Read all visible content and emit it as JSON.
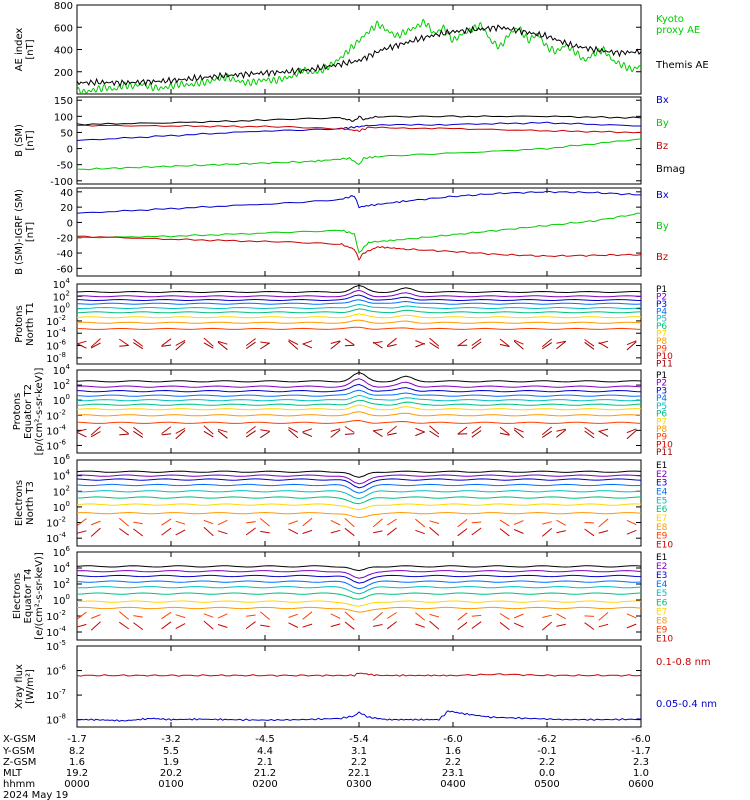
{
  "figure": {
    "date": "2024 May 19",
    "time_axis": {
      "start": "0000",
      "end": "0600",
      "rows": [
        {
          "label": "X-GSM",
          "values": [
            "-1.7",
            "-3.2",
            "-4.5",
            "-5.4",
            "-6.0",
            "-6.2",
            "-6.0"
          ]
        },
        {
          "label": "Y-GSM",
          "values": [
            "8.2",
            "5.5",
            "4.4",
            "3.1",
            "1.6",
            "-0.1",
            "-1.7"
          ]
        },
        {
          "label": "Z-GSM",
          "values": [
            "1.6",
            "1.9",
            "2.1",
            "2.2",
            "2.2",
            "2.2",
            "2.3"
          ]
        },
        {
          "label": "MLT",
          "values": [
            "19.2",
            "20.2",
            "21.2",
            "22.1",
            "23.1",
            "0.0",
            "1.0"
          ]
        },
        {
          "label": "hhmm",
          "values": [
            "0000",
            "0100",
            "0200",
            "0300",
            "0400",
            "0500",
            "0600"
          ]
        }
      ]
    }
  },
  "chart_data": [
    {
      "type": "line",
      "ylabel": "AE index\n[nT]",
      "ylim": [
        0,
        800
      ],
      "yticks": [
        "200",
        "400",
        "600",
        "800"
      ],
      "series": [
        {
          "name": "Kyoto\nproxy AE",
          "color": "#00cc00",
          "x": [
            0,
            0.1,
            0.2,
            0.3,
            0.4,
            0.5,
            0.6,
            0.7,
            0.8,
            0.9,
            1,
            1.1,
            1.2,
            1.3,
            1.4,
            1.5,
            1.6,
            1.7,
            1.8,
            1.9,
            2,
            2.1,
            2.2,
            2.3,
            2.4,
            2.5,
            2.6,
            2.7,
            2.8,
            2.9,
            3,
            3.1,
            3.2,
            3.3,
            3.4,
            3.5,
            3.6,
            3.7,
            3.8,
            3.9,
            4,
            4.1,
            4.2,
            4.3,
            4.4,
            4.5,
            4.6,
            4.7,
            4.8,
            4.9,
            5,
            5.1,
            5.2,
            5.3,
            5.4,
            5.5,
            5.6,
            5.7,
            5.8,
            5.9,
            6
          ],
          "y": [
            30,
            20,
            40,
            60,
            40,
            80,
            70,
            90,
            60,
            50,
            70,
            90,
            80,
            100,
            110,
            140,
            150,
            120,
            100,
            110,
            130,
            120,
            140,
            160,
            220,
            190,
            210,
            260,
            320,
            400,
            480,
            560,
            630,
            570,
            520,
            560,
            600,
            650,
            540,
            600,
            480,
            540,
            580,
            620,
            480,
            420,
            540,
            600,
            480,
            540,
            420,
            380,
            440,
            380,
            300,
            360,
            400,
            300,
            260,
            220,
            250
          ]
        },
        {
          "name": "Themis AE",
          "color": "#000000",
          "x": [
            0,
            0.25,
            0.5,
            0.75,
            1,
            1.25,
            1.5,
            1.75,
            2,
            2.25,
            2.5,
            2.75,
            3,
            3.25,
            3.5,
            3.75,
            4,
            4.25,
            4.5,
            4.75,
            5,
            5.25,
            5.5,
            5.75,
            6
          ],
          "y": [
            100,
            105,
            100,
            110,
            120,
            140,
            160,
            175,
            190,
            200,
            220,
            260,
            300,
            400,
            460,
            520,
            560,
            580,
            600,
            560,
            520,
            440,
            400,
            370,
            380
          ]
        }
      ]
    },
    {
      "type": "line",
      "ylabel": "B (SM)\n[nT]",
      "ylim": [
        -110,
        160
      ],
      "yticks": [
        "-100",
        "-50",
        "0",
        "50",
        "100",
        "150"
      ],
      "series": [
        {
          "name": "Bx",
          "color": "#0000cc",
          "x": [
            0,
            1,
            2,
            2.8,
            3,
            3.1,
            4,
            5,
            6
          ],
          "y": [
            25,
            40,
            55,
            62,
            68,
            72,
            75,
            80,
            70
          ]
        },
        {
          "name": "By",
          "color": "#00cc00",
          "x": [
            0,
            0.5,
            1,
            1.5,
            2,
            2.5,
            2.9,
            3,
            3.05,
            3.2,
            4,
            5,
            6
          ],
          "y": [
            -65,
            -60,
            -55,
            -50,
            -45,
            -40,
            -30,
            -50,
            -30,
            -25,
            -15,
            0,
            30
          ]
        },
        {
          "name": "Bz",
          "color": "#cc0000",
          "x": [
            0,
            1,
            2,
            2.8,
            3,
            3.1,
            4,
            5,
            6
          ],
          "y": [
            72,
            70,
            68,
            62,
            55,
            65,
            62,
            55,
            50
          ]
        },
        {
          "name": "Bmag",
          "color": "#000000",
          "x": [
            0,
            1,
            2,
            2.8,
            2.95,
            3,
            3.05,
            3.2,
            4,
            5,
            6
          ],
          "y": [
            75,
            80,
            88,
            95,
            85,
            100,
            90,
            100,
            100,
            100,
            95
          ]
        }
      ]
    },
    {
      "type": "line",
      "ylabel": "B (SM)-IGRF (SM)\n[nT]",
      "ylim": [
        -70,
        45
      ],
      "yticks": [
        "-60",
        "-40",
        "-20",
        "0",
        "20",
        "40"
      ],
      "series": [
        {
          "name": "Bx",
          "color": "#0000cc",
          "x": [
            0,
            1,
            2,
            2.8,
            2.95,
            3,
            3.1,
            3.5,
            4,
            4.5,
            5,
            5.5,
            6
          ],
          "y": [
            12,
            18,
            24,
            30,
            35,
            20,
            22,
            28,
            34,
            38,
            40,
            39,
            36
          ]
        },
        {
          "name": "By",
          "color": "#00cc00",
          "x": [
            0,
            1,
            2,
            2.8,
            2.95,
            3,
            3.1,
            3.5,
            4,
            4.5,
            5,
            5.5,
            6
          ],
          "y": [
            -20,
            -18,
            -14,
            -10,
            -15,
            -40,
            -26,
            -22,
            -16,
            -10,
            -4,
            2,
            12
          ]
        },
        {
          "name": "Bz",
          "color": "#cc0000",
          "x": [
            0,
            1,
            2,
            2.8,
            2.95,
            3,
            3.05,
            3.2,
            3.5,
            4,
            4.5,
            5,
            5.5,
            6
          ],
          "y": [
            -18,
            -22,
            -25,
            -28,
            -35,
            -48,
            -40,
            -32,
            -35,
            -38,
            -42,
            -44,
            -43,
            -42
          ]
        }
      ]
    },
    {
      "type": "line",
      "ylabel": "Protons\nNorth T1",
      "ylim": [
        -9,
        4
      ],
      "yticks": [
        "10^4",
        "10^2",
        "10^0",
        "10^-2",
        "10^-4",
        "10^-6",
        "10^-8"
      ],
      "right_labels": [
        "P1",
        "P2",
        "P3",
        "P4",
        "P5",
        "P6",
        "P7",
        "P8",
        "P9",
        "P10",
        "P11"
      ],
      "label_colors": [
        "#000000",
        "#8000c0",
        "#0000cc",
        "#0070ff",
        "#00c0c0",
        "#00c080",
        "#ffd700",
        "#ff9900",
        "#ff4000",
        "#cc0000",
        "#990000"
      ],
      "levels": [
        2.7,
        2.0,
        1.4,
        0.8,
        0.1,
        -0.6,
        -1.4,
        -2.3,
        -3.3,
        -5.5,
        -6.0
      ],
      "event": [
        [
          3.0,
          1.0
        ],
        [
          3.5,
          0.6
        ]
      ]
    },
    {
      "type": "line",
      "ylabel": "Protons\nEquator T2\n[p/(cm^2-s-sr-keV)]",
      "ylim": [
        -7,
        4
      ],
      "yticks": [
        "10^4",
        "10^2",
        "10^0",
        "10^-2",
        "10^-4",
        "10^-6"
      ],
      "right_labels": [
        "P1",
        "P2",
        "P3",
        "P4",
        "P5",
        "P6",
        "P7",
        "P8",
        "P9",
        "P10",
        "P11"
      ],
      "label_colors": [
        "#000000",
        "#8000c0",
        "#0000cc",
        "#0070ff",
        "#00c0c0",
        "#00c080",
        "#ffd700",
        "#ff9900",
        "#ff4000",
        "#cc0000",
        "#990000"
      ],
      "levels": [
        2.5,
        1.8,
        1.2,
        0.6,
        0.0,
        -0.6,
        -1.2,
        -2.0,
        -3.0,
        -4.0,
        -4.5
      ],
      "event": [
        [
          3.0,
          1.1
        ],
        [
          3.5,
          0.6
        ]
      ]
    },
    {
      "type": "line",
      "ylabel": "Electrons\nNorth T3",
      "ylim": [
        -5,
        6
      ],
      "yticks": [
        "10^6",
        "10^4",
        "10^2",
        "10^0",
        "10^-2",
        "10^-4"
      ],
      "right_labels": [
        "E1",
        "E2",
        "E3",
        "E4",
        "E5",
        "E6",
        "E7",
        "E8",
        "E9",
        "E10"
      ],
      "label_colors": [
        "#000000",
        "#8000c0",
        "#0000cc",
        "#0070ff",
        "#00c0c0",
        "#00c080",
        "#ffd700",
        "#ff9900",
        "#ff4000",
        "#cc0000"
      ],
      "levels": [
        4.5,
        4.0,
        3.5,
        2.8,
        2.0,
        1.2,
        0.3,
        -0.8,
        -2.0,
        -3.2
      ],
      "event": [
        [
          3.0,
          -0.8
        ]
      ]
    },
    {
      "type": "line",
      "ylabel": "Electrons\nEquator T4\n[e/(cm^2-s-sr-keV)]",
      "ylim": [
        -5,
        6
      ],
      "yticks": [
        "10^6",
        "10^4",
        "10^2",
        "10^0",
        "10^-2",
        "10^-4"
      ],
      "right_labels": [
        "E1",
        "E2",
        "E3",
        "E4",
        "E5",
        "E6",
        "E7",
        "E8",
        "E9",
        "E10"
      ],
      "label_colors": [
        "#000000",
        "#8000c0",
        "#0000cc",
        "#0070ff",
        "#00c0c0",
        "#00c080",
        "#ffd700",
        "#ff9900",
        "#ff4000",
        "#cc0000"
      ],
      "levels": [
        4.2,
        3.6,
        3.0,
        2.3,
        1.6,
        0.8,
        -0.2,
        -1.0,
        -2.0,
        -3.2
      ],
      "event": [
        [
          3.0,
          -0.6
        ]
      ]
    },
    {
      "type": "line",
      "ylabel": "Xray flux\n[W/m^2]",
      "ylim": [
        -8.3,
        -5
      ],
      "yticks": [
        "10^-5",
        "10^-6",
        "10^-7",
        "10^-8"
      ],
      "series": [
        {
          "name": "0.1-0.8 nm",
          "color": "#cc0000",
          "x": [
            0,
            0.5,
            1,
            1.5,
            2,
            2.5,
            2.95,
            3,
            3.2,
            3.6,
            4,
            4.5,
            5,
            5.5,
            6
          ],
          "y": [
            -6.2,
            -6.2,
            -6.2,
            -6.2,
            -6.2,
            -6.2,
            -6.2,
            -6.1,
            -6.2,
            -6.2,
            -6.2,
            -6.15,
            -6.2,
            -6.2,
            -6.2
          ]
        },
        {
          "name": "0.05-0.4 nm",
          "color": "#0000cc",
          "x": [
            0,
            0.2,
            0.5,
            0.8,
            1,
            1.3,
            1.6,
            2,
            2.4,
            2.8,
            2.95,
            3.0,
            3.1,
            3.3,
            3.6,
            3.85,
            3.95,
            4.1,
            4.4,
            4.8,
            5.2,
            5.6,
            6
          ],
          "y": [
            -8.0,
            -8.0,
            -8.05,
            -7.95,
            -8.0,
            -7.98,
            -8.0,
            -8.02,
            -8.0,
            -7.95,
            -7.85,
            -7.7,
            -7.9,
            -8.0,
            -8.0,
            -8.0,
            -7.65,
            -7.75,
            -7.9,
            -7.95,
            -8.0,
            -8.0,
            -7.98
          ]
        }
      ]
    }
  ]
}
